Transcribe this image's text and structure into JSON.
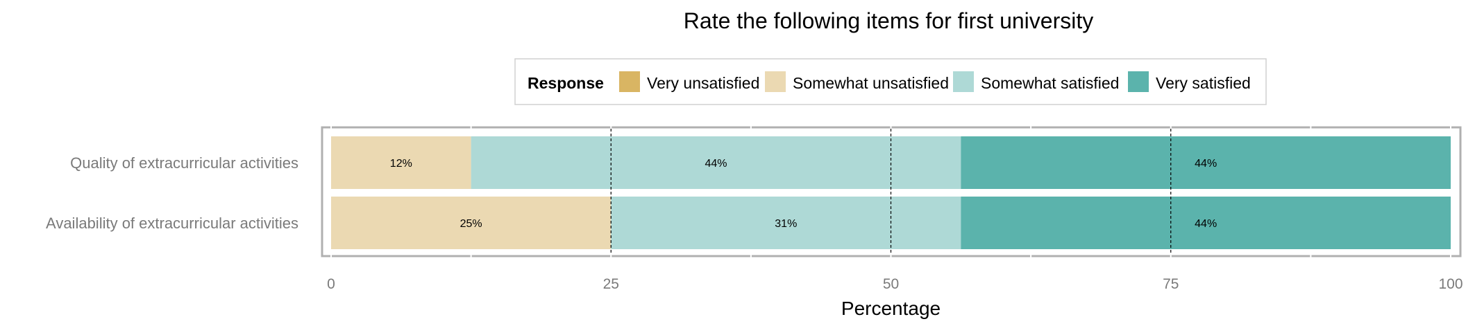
{
  "chart_data": {
    "type": "bar",
    "orientation": "horizontal",
    "stacked": true,
    "title": "Rate the following items for first university",
    "xlabel": "Percentage",
    "ylabel": "",
    "xlim": [
      0,
      100
    ],
    "x_ticks": [
      0,
      25,
      50,
      75,
      100
    ],
    "grid": true,
    "legend": {
      "title": "Response",
      "position": "top",
      "entries": [
        "Very unsatisfied",
        "Somewhat unsatisfied",
        "Somewhat satisfied",
        "Very satisfied"
      ]
    },
    "categories": [
      "Quality of extracurricular activities",
      "Availability of extracurricular activities"
    ],
    "series": [
      {
        "name": "Very unsatisfied",
        "color": "#d9b563",
        "values": [
          0,
          0
        ],
        "labels": [
          "",
          ""
        ]
      },
      {
        "name": "Somewhat unsatisfied",
        "color": "#ebd9b2",
        "values": [
          12.5,
          25
        ],
        "labels": [
          "12%",
          "25%"
        ]
      },
      {
        "name": "Somewhat satisfied",
        "color": "#aed9d6",
        "values": [
          43.75,
          31.25
        ],
        "labels": [
          "44%",
          "31%"
        ]
      },
      {
        "name": "Very satisfied",
        "color": "#5bb3ac",
        "values": [
          43.75,
          43.75
        ],
        "labels": [
          "44%",
          "44%"
        ]
      }
    ]
  }
}
